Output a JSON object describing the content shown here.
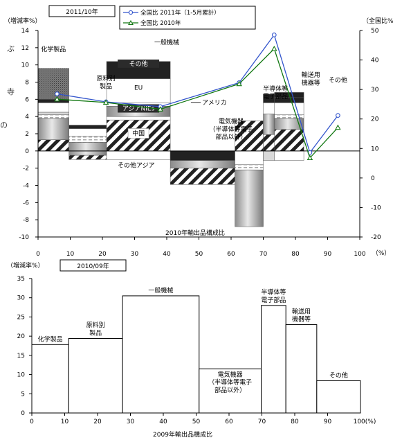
{
  "stray_text": [
    "ぶ",
    "寺",
    "の"
  ],
  "chart_data": [
    {
      "type": "bar",
      "variant": "marimekko-stacked-with-lines",
      "label_box": "2011/10年",
      "ylabel": "（増減率%）",
      "y2label": "（全国比%）",
      "xlabel": "2010年輸出品構成比",
      "x_unit": "（%）",
      "ylim": [
        -10,
        14
      ],
      "y2lim": [
        -20,
        50
      ],
      "xlim": [
        0,
        100
      ],
      "x_ticks": [
        "0",
        "10",
        "20",
        "30",
        "40",
        "50",
        "60",
        "70",
        "80",
        "90",
        "100"
      ],
      "y_ticks": [
        "-10",
        "-8",
        "-6",
        "-4",
        "-2",
        "0",
        "2",
        "4",
        "6",
        "8",
        "10",
        "12",
        "14"
      ],
      "y2_ticks": [
        "-20",
        "-10",
        "0",
        "10",
        "20",
        "30",
        "40",
        "50"
      ],
      "grid": false,
      "legend_position": "top",
      "categories": [
        "化学製品",
        "原料別\n製品",
        "一般機械",
        "電気機器\n（半導体等電子\n部品以外）",
        "半導体等\n電子部品",
        "輸送用\n機器等",
        "その他"
      ],
      "widths": [
        9.6,
        11.7,
        19.8,
        20.1,
        8.8,
        3.5,
        9.1
      ],
      "stacks": [
        [
          {
            "from": 0,
            "to": 1.3,
            "fill": "hatch"
          },
          {
            "from": 1.3,
            "to": 3.8,
            "fill": "cylinder"
          },
          {
            "from": 3.8,
            "to": 4.2,
            "fill": "dash"
          },
          {
            "from": 4.2,
            "to": 4.5,
            "fill": "light"
          },
          {
            "from": 4.5,
            "to": 5.6,
            "fill": "white"
          },
          {
            "from": 5.6,
            "to": 6.0,
            "fill": "dark"
          },
          {
            "from": 6.0,
            "to": 9.6,
            "fill": "dots"
          }
        ],
        [
          {
            "from": -1,
            "to": -0.5,
            "fill": "hatch"
          },
          {
            "from": -0.5,
            "to": 0,
            "fill": "cylinder"
          },
          {
            "from": 0,
            "to": 1.0,
            "fill": "cylinder"
          },
          {
            "from": 1.0,
            "to": 1.7,
            "fill": "dash"
          },
          {
            "from": 1.7,
            "to": 2.6,
            "fill": "white"
          },
          {
            "from": 2.6,
            "to": 3.0,
            "fill": "dark"
          }
        ],
        [
          {
            "from": -1,
            "to": 0,
            "fill": "white"
          },
          {
            "from": 0,
            "to": 3.6,
            "fill": "hatch"
          },
          {
            "from": 3.6,
            "to": 4.0,
            "fill": "white"
          },
          {
            "from": 4.0,
            "to": 5.2,
            "fill": "cylinder"
          },
          {
            "from": 5.2,
            "to": 5.6,
            "fill": "white"
          },
          {
            "from": 5.6,
            "to": 8.4,
            "fill": "white"
          },
          {
            "from": 8.4,
            "to": 10.4,
            "fill": "dark"
          }
        ],
        [
          {
            "from": -3.9,
            "to": -2.0,
            "fill": "hatch"
          },
          {
            "from": -2.0,
            "to": -1.1,
            "fill": "cylinder"
          },
          {
            "from": -1.1,
            "to": 0,
            "fill": "dark"
          }
        ],
        [
          {
            "from": -8.8,
            "to": -2.2,
            "fill": "cylinder"
          },
          {
            "from": -2.2,
            "to": -1.6,
            "fill": "dash"
          },
          {
            "from": -1.6,
            "to": 0,
            "fill": "white"
          },
          {
            "from": 0,
            "to": 3.5,
            "fill": "hatch"
          }
        ],
        [
          {
            "from": -1.1,
            "to": 0,
            "fill": "light"
          },
          {
            "from": 0,
            "to": 1.9,
            "fill": "hatch"
          },
          {
            "from": 1.9,
            "to": 4.3,
            "fill": "cylinder"
          },
          {
            "from": 4.3,
            "to": 5.6,
            "fill": "white"
          },
          {
            "from": 5.6,
            "to": 6.6,
            "fill": "dark"
          }
        ],
        [
          {
            "from": -1.1,
            "to": 0,
            "fill": "white"
          },
          {
            "from": 0,
            "to": 2.5,
            "fill": "hatch"
          },
          {
            "from": 2.5,
            "to": 3.8,
            "fill": "cylinder"
          },
          {
            "from": 3.8,
            "to": 4.2,
            "fill": "dash"
          },
          {
            "from": 4.2,
            "to": 5.6,
            "fill": "white"
          },
          {
            "from": 5.6,
            "to": 6.2,
            "fill": "dark"
          },
          {
            "from": 6.2,
            "to": 6.8,
            "fill": "dark"
          }
        ]
      ],
      "segment_labels": [
        {
          "text": "その他",
          "bar": 2,
          "y": 9.9,
          "inverted": true
        },
        {
          "text": "EU",
          "bar": 2,
          "y": 7.1
        },
        {
          "text": "アジアNIEs",
          "bar": 2,
          "y": 4.7,
          "inverted": true
        },
        {
          "text": "中国",
          "bar": 2,
          "y": 1.8,
          "boxed": true
        },
        {
          "text": "アメリカ",
          "x": 51,
          "y": 5.4,
          "arrow_to_x": 47.5
        },
        {
          "text": "その他アジア",
          "x": 30.5,
          "y": -1.9
        }
      ],
      "line_x": [
        5.9,
        21.1,
        38,
        62.5,
        73.4,
        84.5,
        93.2
      ],
      "series": [
        {
          "name": "全国比 2011年（1-5月累計）",
          "marker": "circle",
          "color": "#3355cc",
          "values": [
            28.5,
            25.8,
            24.2,
            32.3,
            48.5,
            8.6,
            21.2
          ]
        },
        {
          "name": "全国比 2010年",
          "marker": "triangle",
          "color": "#117711",
          "values": [
            26.7,
            25.6,
            23.3,
            31.9,
            43.8,
            6.8,
            17.1
          ]
        }
      ]
    },
    {
      "type": "bar",
      "variant": "marimekko",
      "label_box": "2010/09年",
      "ylabel": "（増減率%）",
      "xlabel": "2009年輸出品構成比",
      "x_unit": "100(%)",
      "ylim": [
        0,
        35
      ],
      "xlim": [
        0,
        100
      ],
      "x_ticks": [
        "0",
        "10",
        "20",
        "30",
        "40",
        "50",
        "60",
        "70",
        "80",
        "90"
      ],
      "y_ticks": [
        "0",
        "5",
        "10",
        "15",
        "20",
        "25",
        "30",
        "35"
      ],
      "grid": false,
      "categories": [
        "化学製品",
        "原料別\n製品",
        "一般機械",
        "電気機器\n（半導体等電子\n部品以外）",
        "半導体等\n電子部品",
        "輸送用\n機器等",
        "その他"
      ],
      "widths": [
        11.2,
        16.4,
        23.3,
        18.9,
        7.5,
        9.4,
        13.3
      ],
      "values": [
        17.8,
        19.4,
        30.5,
        11.5,
        28.0,
        23.0,
        8.4
      ]
    }
  ]
}
